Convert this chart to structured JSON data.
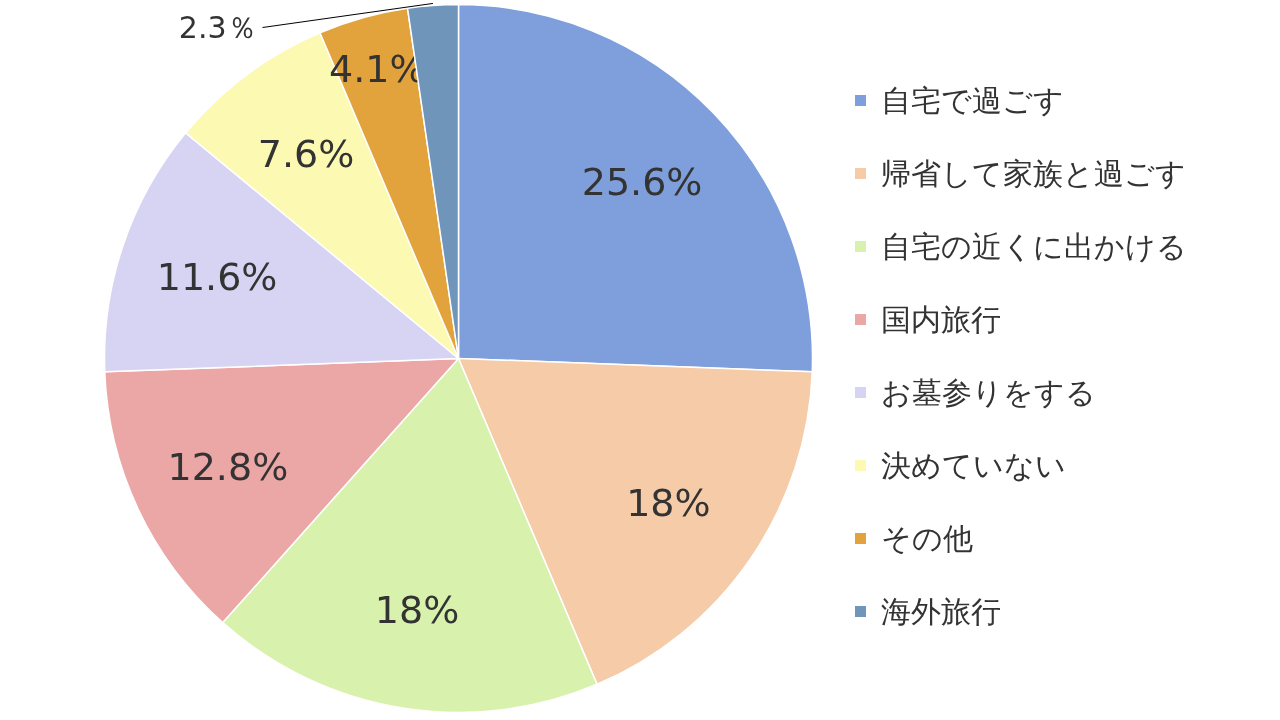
{
  "chart_data": {
    "type": "pie",
    "categories": [
      "自宅で過ごす",
      "帰省して家族と過ごす",
      "自宅の近くに出かける",
      "国内旅行",
      "お墓参りをする",
      "決めていない",
      "その他",
      "海外旅行"
    ],
    "values": [
      25.6,
      18,
      18,
      12.8,
      11.6,
      7.6,
      4.1,
      2.3
    ],
    "colors": [
      "#7e9fdc",
      "#f5cba8",
      "#d8f2ad",
      "#eba6a6",
      "#d7d3f2",
      "#fbf9b2",
      "#e2a23c",
      "#7095bb"
    ],
    "value_labels": [
      "25.6%",
      "18%",
      "18%",
      "12.8%",
      "11.6%",
      "7.6%",
      "4.1%",
      "2.3％"
    ],
    "legend": "right"
  }
}
